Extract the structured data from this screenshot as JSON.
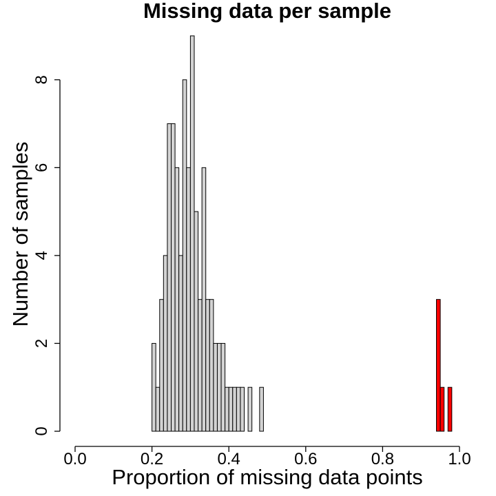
{
  "chart_data": {
    "type": "bar",
    "title": "Missing data per sample",
    "xlabel": "Proportion of missing data points",
    "ylabel": "Number of samples",
    "xlim": [
      0.0,
      1.0
    ],
    "ylim": [
      0,
      9
    ],
    "x_ticks": [
      "0.0",
      "0.2",
      "0.4",
      "0.6",
      "0.8",
      "1.0"
    ],
    "y_ticks": [
      "0",
      "2",
      "4",
      "6",
      "8"
    ],
    "bin_width": 0.01,
    "grid": false,
    "legend": "none",
    "series": [
      {
        "color": "#d3d3d3",
        "bins": [
          {
            "x": 0.2,
            "count": 2
          },
          {
            "x": 0.21,
            "count": 1
          },
          {
            "x": 0.22,
            "count": 3
          },
          {
            "x": 0.23,
            "count": 4
          },
          {
            "x": 0.24,
            "count": 7
          },
          {
            "x": 0.25,
            "count": 7
          },
          {
            "x": 0.26,
            "count": 6
          },
          {
            "x": 0.27,
            "count": 4
          },
          {
            "x": 0.28,
            "count": 8
          },
          {
            "x": 0.29,
            "count": 6
          },
          {
            "x": 0.3,
            "count": 9
          },
          {
            "x": 0.31,
            "count": 5
          },
          {
            "x": 0.32,
            "count": 3
          },
          {
            "x": 0.33,
            "count": 6
          },
          {
            "x": 0.34,
            "count": 3
          },
          {
            "x": 0.35,
            "count": 3
          },
          {
            "x": 0.36,
            "count": 2
          },
          {
            "x": 0.37,
            "count": 2
          },
          {
            "x": 0.38,
            "count": 2
          },
          {
            "x": 0.39,
            "count": 1
          },
          {
            "x": 0.4,
            "count": 1
          },
          {
            "x": 0.41,
            "count": 1
          },
          {
            "x": 0.42,
            "count": 1
          },
          {
            "x": 0.43,
            "count": 1
          },
          {
            "x": 0.44,
            "count": 0
          },
          {
            "x": 0.45,
            "count": 1
          },
          {
            "x": 0.46,
            "count": 0
          },
          {
            "x": 0.47,
            "count": 0
          },
          {
            "x": 0.48,
            "count": 1
          }
        ]
      },
      {
        "color": "#ff0000",
        "bins": [
          {
            "x": 0.94,
            "count": 3
          },
          {
            "x": 0.95,
            "count": 1
          },
          {
            "x": 0.96,
            "count": 0
          },
          {
            "x": 0.97,
            "count": 1
          }
        ]
      }
    ]
  }
}
